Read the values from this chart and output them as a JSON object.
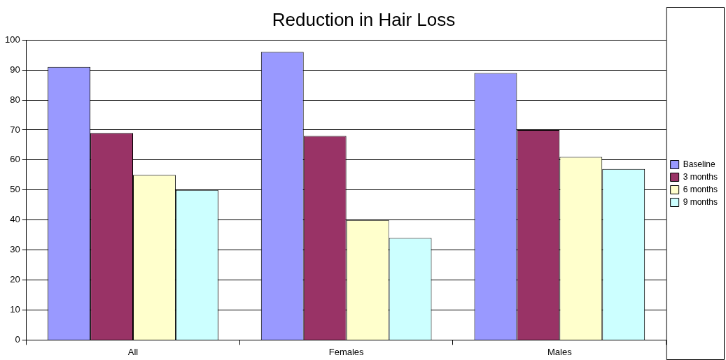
{
  "chart_data": {
    "type": "bar",
    "title": "Reduction in Hair Loss",
    "categories": [
      "All",
      "Females",
      "Males"
    ],
    "series": [
      {
        "name": "Baseline",
        "color": "#9999ff",
        "values": [
          91,
          96,
          89
        ]
      },
      {
        "name": "3 months",
        "color": "#993366",
        "values": [
          69,
          68,
          70
        ]
      },
      {
        "name": "6 months",
        "color": "#ffffcc",
        "values": [
          55,
          40,
          61
        ]
      },
      {
        "name": "9 months",
        "color": "#ccffff",
        "values": [
          50,
          34,
          57
        ]
      }
    ],
    "ylim": [
      0,
      100
    ],
    "yticks": [
      0,
      10,
      20,
      30,
      40,
      50,
      60,
      70,
      80,
      90,
      100
    ],
    "grid": "y",
    "legend": "right"
  }
}
